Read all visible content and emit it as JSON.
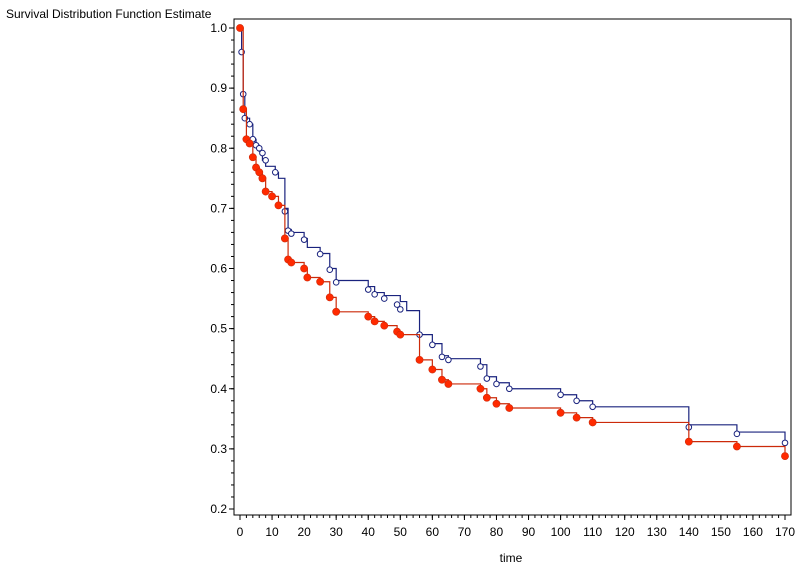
{
  "chart_data": {
    "type": "line",
    "title": "",
    "ylabel": "Survival Distribution Function Estimate",
    "xlabel": "time",
    "xlim": [
      0,
      170
    ],
    "ylim": [
      0.2,
      1.0
    ],
    "x_ticks": [
      0,
      10,
      20,
      30,
      40,
      50,
      60,
      70,
      80,
      90,
      100,
      110,
      120,
      130,
      140,
      150,
      160,
      170
    ],
    "y_ticks": [
      0.2,
      0.3,
      0.4,
      0.5,
      0.6,
      0.7,
      0.8,
      0.9,
      1.0
    ],
    "grid": false,
    "legend": "none",
    "series": [
      {
        "color": "#1a237e",
        "marker": "open-circle",
        "steps": [
          [
            0,
            1.0
          ],
          [
            0.5,
            0.96
          ],
          [
            1,
            0.89
          ],
          [
            1.5,
            0.85
          ],
          [
            3,
            0.84
          ],
          [
            4,
            0.815
          ],
          [
            5,
            0.805
          ],
          [
            6,
            0.795
          ],
          [
            7,
            0.78
          ],
          [
            8,
            0.77
          ],
          [
            11,
            0.76
          ],
          [
            12,
            0.75
          ],
          [
            14,
            0.7
          ],
          [
            15,
            0.665
          ],
          [
            16,
            0.66
          ],
          [
            20,
            0.65
          ],
          [
            21,
            0.635
          ],
          [
            25,
            0.625
          ],
          [
            28,
            0.6
          ],
          [
            30,
            0.58
          ],
          [
            40,
            0.57
          ],
          [
            42,
            0.56
          ],
          [
            45,
            0.555
          ],
          [
            50,
            0.545
          ],
          [
            52,
            0.53
          ],
          [
            56,
            0.49
          ],
          [
            60,
            0.475
          ],
          [
            63,
            0.455
          ],
          [
            65,
            0.45
          ],
          [
            75,
            0.44
          ],
          [
            77,
            0.42
          ],
          [
            80,
            0.41
          ],
          [
            84,
            0.4
          ],
          [
            100,
            0.39
          ],
          [
            105,
            0.38
          ],
          [
            110,
            0.37
          ],
          [
            140,
            0.34
          ],
          [
            155,
            0.328
          ],
          [
            170,
            0.31
          ]
        ],
        "censored": [
          [
            0.5,
            0.96
          ],
          [
            1,
            0.89
          ],
          [
            1.5,
            0.85
          ],
          [
            3,
            0.84
          ],
          [
            4,
            0.815
          ],
          [
            5,
            0.805
          ],
          [
            6,
            0.8
          ],
          [
            7,
            0.792
          ],
          [
            8,
            0.78
          ],
          [
            11,
            0.76
          ],
          [
            14,
            0.695
          ],
          [
            15,
            0.663
          ],
          [
            16,
            0.658
          ],
          [
            20,
            0.648
          ],
          [
            25,
            0.624
          ],
          [
            28,
            0.598
          ],
          [
            30,
            0.577
          ],
          [
            40,
            0.565
          ],
          [
            42,
            0.557
          ],
          [
            45,
            0.55
          ],
          [
            49,
            0.54
          ],
          [
            50,
            0.532
          ],
          [
            56,
            0.49
          ],
          [
            60,
            0.473
          ],
          [
            63,
            0.453
          ],
          [
            65,
            0.448
          ],
          [
            75,
            0.437
          ],
          [
            77,
            0.417
          ],
          [
            80,
            0.408
          ],
          [
            84,
            0.4
          ],
          [
            100,
            0.39
          ],
          [
            105,
            0.38
          ],
          [
            110,
            0.37
          ],
          [
            140,
            0.336
          ],
          [
            155,
            0.325
          ],
          [
            170,
            0.31
          ]
        ]
      },
      {
        "color": "#cc2a0a",
        "marker": "filled-circle",
        "steps": [
          [
            0,
            1.0
          ],
          [
            1,
            0.865
          ],
          [
            2,
            0.815
          ],
          [
            3,
            0.808
          ],
          [
            4,
            0.785
          ],
          [
            5,
            0.768
          ],
          [
            6,
            0.76
          ],
          [
            7,
            0.75
          ],
          [
            8,
            0.728
          ],
          [
            10,
            0.72
          ],
          [
            12,
            0.705
          ],
          [
            14,
            0.65
          ],
          [
            15,
            0.615
          ],
          [
            16,
            0.61
          ],
          [
            20,
            0.6
          ],
          [
            21,
            0.585
          ],
          [
            25,
            0.578
          ],
          [
            28,
            0.552
          ],
          [
            30,
            0.528
          ],
          [
            40,
            0.52
          ],
          [
            42,
            0.512
          ],
          [
            45,
            0.505
          ],
          [
            49,
            0.495
          ],
          [
            50,
            0.49
          ],
          [
            56,
            0.448
          ],
          [
            60,
            0.432
          ],
          [
            63,
            0.415
          ],
          [
            65,
            0.408
          ],
          [
            75,
            0.4
          ],
          [
            77,
            0.385
          ],
          [
            80,
            0.375
          ],
          [
            84,
            0.368
          ],
          [
            100,
            0.36
          ],
          [
            105,
            0.352
          ],
          [
            110,
            0.344
          ],
          [
            140,
            0.312
          ],
          [
            155,
            0.304
          ],
          [
            170,
            0.288
          ]
        ],
        "censored": [
          [
            0,
            1.0
          ],
          [
            1,
            0.865
          ],
          [
            2,
            0.815
          ],
          [
            3,
            0.808
          ],
          [
            4,
            0.785
          ],
          [
            5,
            0.768
          ],
          [
            6,
            0.76
          ],
          [
            7,
            0.75
          ],
          [
            8,
            0.728
          ],
          [
            10,
            0.72
          ],
          [
            12,
            0.705
          ],
          [
            14,
            0.65
          ],
          [
            15,
            0.615
          ],
          [
            16,
            0.61
          ],
          [
            20,
            0.6
          ],
          [
            21,
            0.585
          ],
          [
            25,
            0.578
          ],
          [
            28,
            0.552
          ],
          [
            30,
            0.528
          ],
          [
            40,
            0.52
          ],
          [
            42,
            0.512
          ],
          [
            45,
            0.505
          ],
          [
            49,
            0.495
          ],
          [
            50,
            0.49
          ],
          [
            56,
            0.448
          ],
          [
            60,
            0.432
          ],
          [
            63,
            0.415
          ],
          [
            65,
            0.408
          ],
          [
            75,
            0.4
          ],
          [
            77,
            0.385
          ],
          [
            80,
            0.375
          ],
          [
            84,
            0.368
          ],
          [
            100,
            0.36
          ],
          [
            105,
            0.352
          ],
          [
            110,
            0.344
          ],
          [
            140,
            0.312
          ],
          [
            155,
            0.304
          ],
          [
            170,
            0.288
          ]
        ]
      }
    ]
  }
}
